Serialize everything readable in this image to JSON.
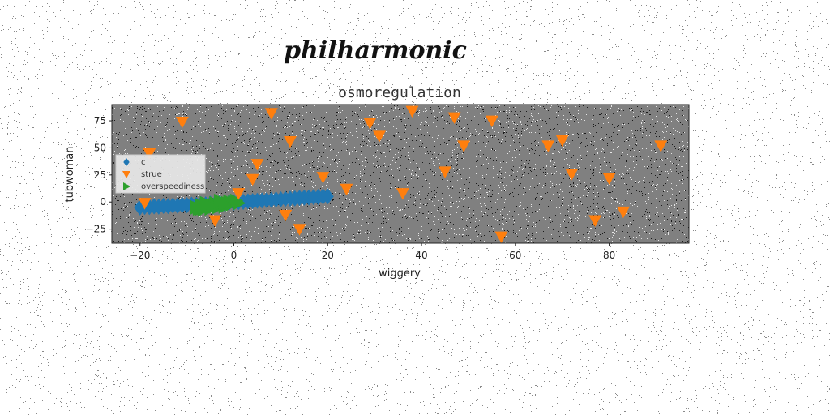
{
  "chart_data": {
    "type": "scatter",
    "suptitle": "philharmonic",
    "title": "osmoregulation",
    "xlabel": "wiggery",
    "ylabel": "tubwoman",
    "xlim": [
      -26,
      97
    ],
    "ylim": [
      -38,
      90
    ],
    "xticks": [
      -20,
      0,
      20,
      40,
      60,
      80
    ],
    "yticks": [
      -25,
      0,
      25,
      50,
      75
    ],
    "xtick_labels": [
      "−20",
      "0",
      "20",
      "40",
      "60",
      "80"
    ],
    "ytick_labels": [
      "−25",
      "0",
      "25",
      "50",
      "75"
    ],
    "background": "#808080",
    "grid": false,
    "legend_position": "center-left",
    "series": [
      {
        "name": "c",
        "marker": "diamond",
        "color": "#1f77b4",
        "points": [
          [
            -20,
            -5
          ],
          [
            -19,
            -4.5
          ],
          [
            -18,
            -4.6
          ],
          [
            -17,
            -4
          ],
          [
            -16,
            -4.2
          ],
          [
            -15,
            -3.6
          ],
          [
            -14,
            -3.8
          ],
          [
            -13,
            -3.2
          ],
          [
            -12,
            -3.4
          ],
          [
            -11,
            -2.8
          ],
          [
            -10,
            -2.9
          ],
          [
            -9,
            -2.4
          ],
          [
            -8,
            -2.5
          ],
          [
            -7,
            -2
          ],
          [
            -6,
            -2.1
          ],
          [
            -5,
            -1.5
          ],
          [
            -4,
            -1.6
          ],
          [
            -3,
            -1.1
          ],
          [
            -2,
            -1.2
          ],
          [
            -1,
            -0.6
          ],
          [
            0,
            -0.5
          ],
          [
            1,
            0
          ],
          [
            2,
            0.2
          ],
          [
            3,
            0.6
          ],
          [
            4,
            0.8
          ],
          [
            5,
            1.2
          ],
          [
            6,
            1.4
          ],
          [
            7,
            1.8
          ],
          [
            8,
            2
          ],
          [
            9,
            2.4
          ],
          [
            10,
            2.5
          ],
          [
            11,
            2.9
          ],
          [
            12,
            3.1
          ],
          [
            13,
            3.4
          ],
          [
            14,
            3.7
          ],
          [
            15,
            4
          ],
          [
            16,
            4.2
          ],
          [
            17,
            4.5
          ],
          [
            18,
            4.7
          ],
          [
            19,
            5
          ],
          [
            20,
            5.2
          ]
        ]
      },
      {
        "name": "strue",
        "marker": "triangle-down",
        "color": "#ff7f0e",
        "points": [
          [
            -19,
            -1
          ],
          [
            -18,
            45
          ],
          [
            -11,
            74
          ],
          [
            -4,
            -17
          ],
          [
            1,
            8
          ],
          [
            4,
            21
          ],
          [
            5,
            35
          ],
          [
            8,
            82
          ],
          [
            11,
            -12
          ],
          [
            12,
            56
          ],
          [
            14,
            -25
          ],
          [
            19,
            23
          ],
          [
            24,
            12
          ],
          [
            29,
            73
          ],
          [
            31,
            61
          ],
          [
            36,
            8
          ],
          [
            38,
            84
          ],
          [
            45,
            28
          ],
          [
            47,
            78
          ],
          [
            49,
            52
          ],
          [
            55,
            75
          ],
          [
            57,
            -32
          ],
          [
            67,
            52
          ],
          [
            70,
            57
          ],
          [
            72,
            26
          ],
          [
            77,
            -17
          ],
          [
            80,
            22
          ],
          [
            83,
            -9
          ],
          [
            91,
            52
          ]
        ]
      },
      {
        "name": "overspeediness",
        "marker": "triangle-right",
        "color": "#2ca02c",
        "points": [
          [
            -8,
            -5
          ],
          [
            -7.5,
            -6
          ],
          [
            -7,
            -3
          ],
          [
            -6.5,
            -7
          ],
          [
            -6,
            -4
          ],
          [
            -5.5,
            -2
          ],
          [
            -5,
            -6
          ],
          [
            -4.5,
            -3
          ],
          [
            -4,
            -1
          ],
          [
            -3.5,
            -5
          ],
          [
            -3,
            -3
          ],
          [
            -2.5,
            0
          ],
          [
            -2,
            -4
          ],
          [
            -1.5,
            -1
          ],
          [
            -1,
            0.5
          ],
          [
            -0.5,
            -2
          ],
          [
            0,
            0
          ],
          [
            0.5,
            1
          ],
          [
            1,
            -1
          ],
          [
            -6,
            -1
          ],
          [
            -4,
            -4
          ],
          [
            -2,
            -2
          ],
          [
            -3,
            1
          ],
          [
            -5,
            -4
          ],
          [
            -7,
            -6
          ]
        ]
      }
    ]
  }
}
